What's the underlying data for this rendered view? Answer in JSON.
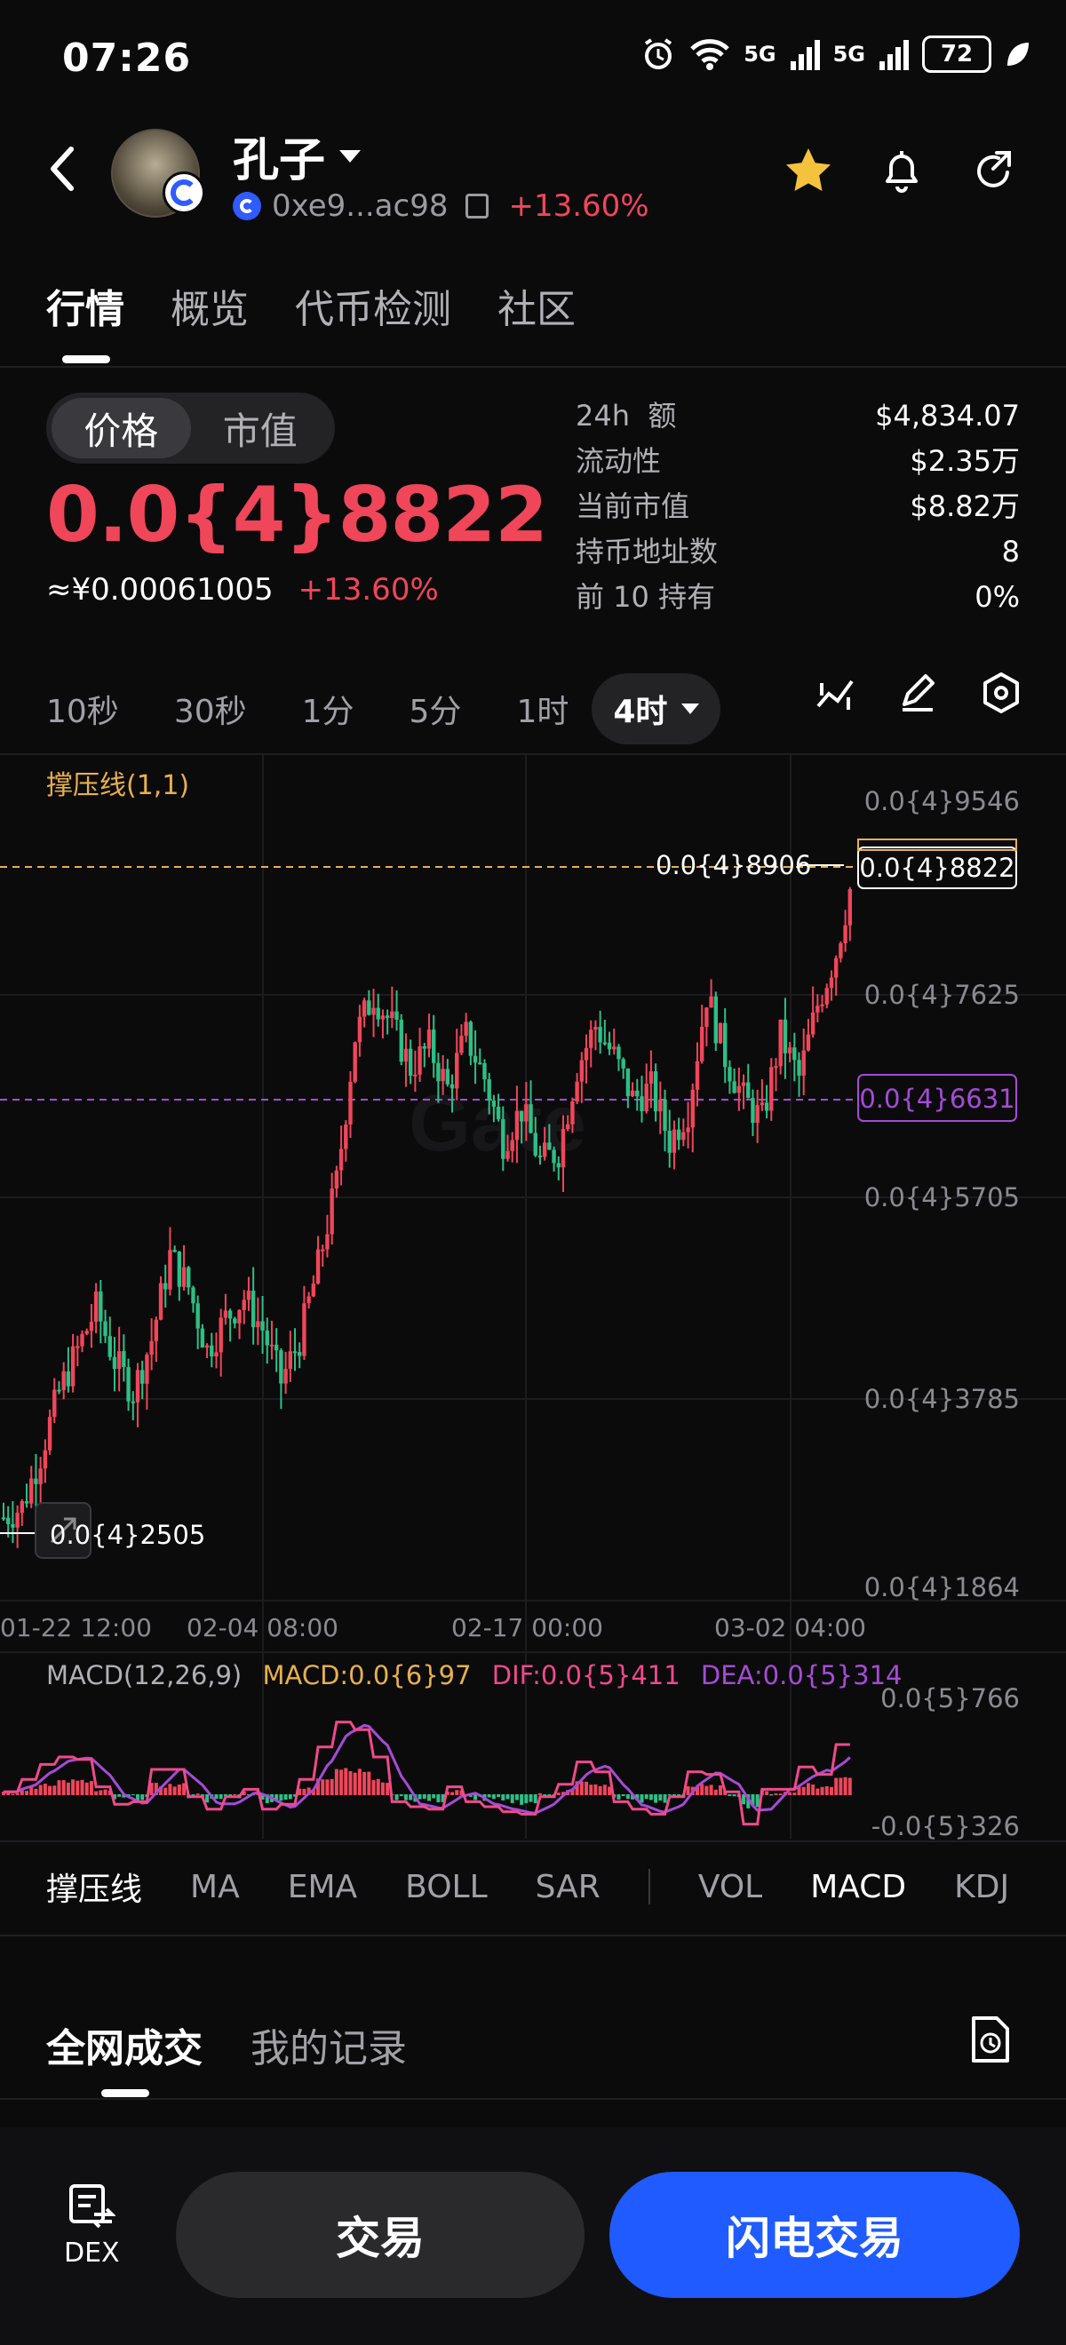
{
  "status_bar": {
    "time": "07:26",
    "net1": "5G",
    "net2": "5G",
    "battery": "72"
  },
  "header": {
    "token_name": "孔子",
    "address": "0xe9...ac98",
    "change": "+13.60%",
    "icons": [
      "back-icon",
      "star-icon",
      "bell-icon",
      "share-icon"
    ],
    "star_color": "#f5c23d"
  },
  "main_tabs": [
    {
      "label": "行情",
      "active": true
    },
    {
      "label": "概览",
      "active": false
    },
    {
      "label": "代币检测",
      "active": false
    },
    {
      "label": "社区",
      "active": false
    }
  ],
  "price_panel": {
    "toggle": [
      "价格",
      "市值"
    ],
    "price": "0.0{4}8822",
    "fiat": "≈¥0.00061005",
    "change": "+13.60%",
    "stats": [
      {
        "label": "24h  额",
        "value": "$4,834.07"
      },
      {
        "label": "流动性",
        "value": "$2.35万"
      },
      {
        "label": "当前市值",
        "value": "$8.82万"
      },
      {
        "label": "持币地址数",
        "value": "8"
      },
      {
        "label": "前 10 持有",
        "value": "0%"
      }
    ]
  },
  "intervals": {
    "options": [
      "10秒",
      "30秒",
      "1分",
      "5分",
      "1时"
    ],
    "selected": "4时",
    "tools": [
      "indicator-icon",
      "draw-pencil-icon",
      "settings-hex-icon"
    ]
  },
  "chart": {
    "indicator_label": "撑压线(1,1)",
    "y_labels": [
      "0.0{4}9546",
      "0.0{4}7625",
      "0.0{4}5705",
      "0.0{4}3785",
      "0.0{4}1864"
    ],
    "high_label": "0.0{4}8906",
    "low_label": "0.0{4}2505",
    "current_price_tag": "0.0{4}8822",
    "support_tag": "0.0{4}6631",
    "x_labels": [
      "01-22 12:00",
      "02-04 08:00",
      "02-17 00:00",
      "03-02 04:00"
    ],
    "colors": {
      "up": "#f0465a",
      "down": "#2dbf86",
      "resistance": "#e8b04b",
      "support": "#a64bd6",
      "dif": "#f04a8a",
      "dea": "#a64bd6"
    },
    "macd": {
      "label": "MACD(12,26,9)",
      "macd": "MACD:0.0{6}97",
      "dif": "DIF:0.0{5}411",
      "dea": "DEA:0.0{5}314",
      "y_top": "0.0{5}766",
      "y_bottom": "-0.0{5}326"
    }
  },
  "chart_data": {
    "type": "candlestick",
    "title": "",
    "x_ticks": [
      "01-22 12:00",
      "02-04 08:00",
      "02-17 00:00",
      "03-02 04:00"
    ],
    "y_ticks": [
      1.864e-05,
      3.785e-05,
      5.705e-05,
      7.625e-05,
      9.546e-05
    ],
    "ylim": [
      1.864e-05,
      9.546e-05
    ],
    "high": 8.906e-05,
    "low": 2.505e-05,
    "last": 8.822e-05,
    "resistance": 8.906e-05,
    "support": 6.631e-05,
    "trend_points": [
      2.6,
      2.7,
      3.2,
      3.8,
      4.2,
      4.6,
      4.1,
      3.8,
      4.3,
      5.1,
      4.8,
      4.2,
      4.5,
      4.7,
      4.4,
      3.9,
      4.3,
      5.0,
      5.8,
      7.2,
      7.6,
      7.3,
      6.9,
      7.1,
      6.7,
      7.2,
      6.8,
      6.2,
      6.5,
      6.0,
      6.1,
      6.9,
      7.3,
      7.0,
      6.6,
      6.7,
      6.2,
      6.5,
      7.6,
      7.0,
      6.6,
      6.4,
      7.2,
      6.8,
      7.5,
      8.0,
      8.8
    ]
  },
  "indicator_tabs": [
    "撑压线",
    "MA",
    "EMA",
    "BOLL",
    "SAR",
    "VOL",
    "MACD",
    "KDJ"
  ],
  "trade_tabs": [
    "全网成交",
    "我的记录"
  ],
  "bottom": {
    "dex_label": "DEX",
    "trade_button": "交易",
    "flash_button": "闪电交易"
  }
}
